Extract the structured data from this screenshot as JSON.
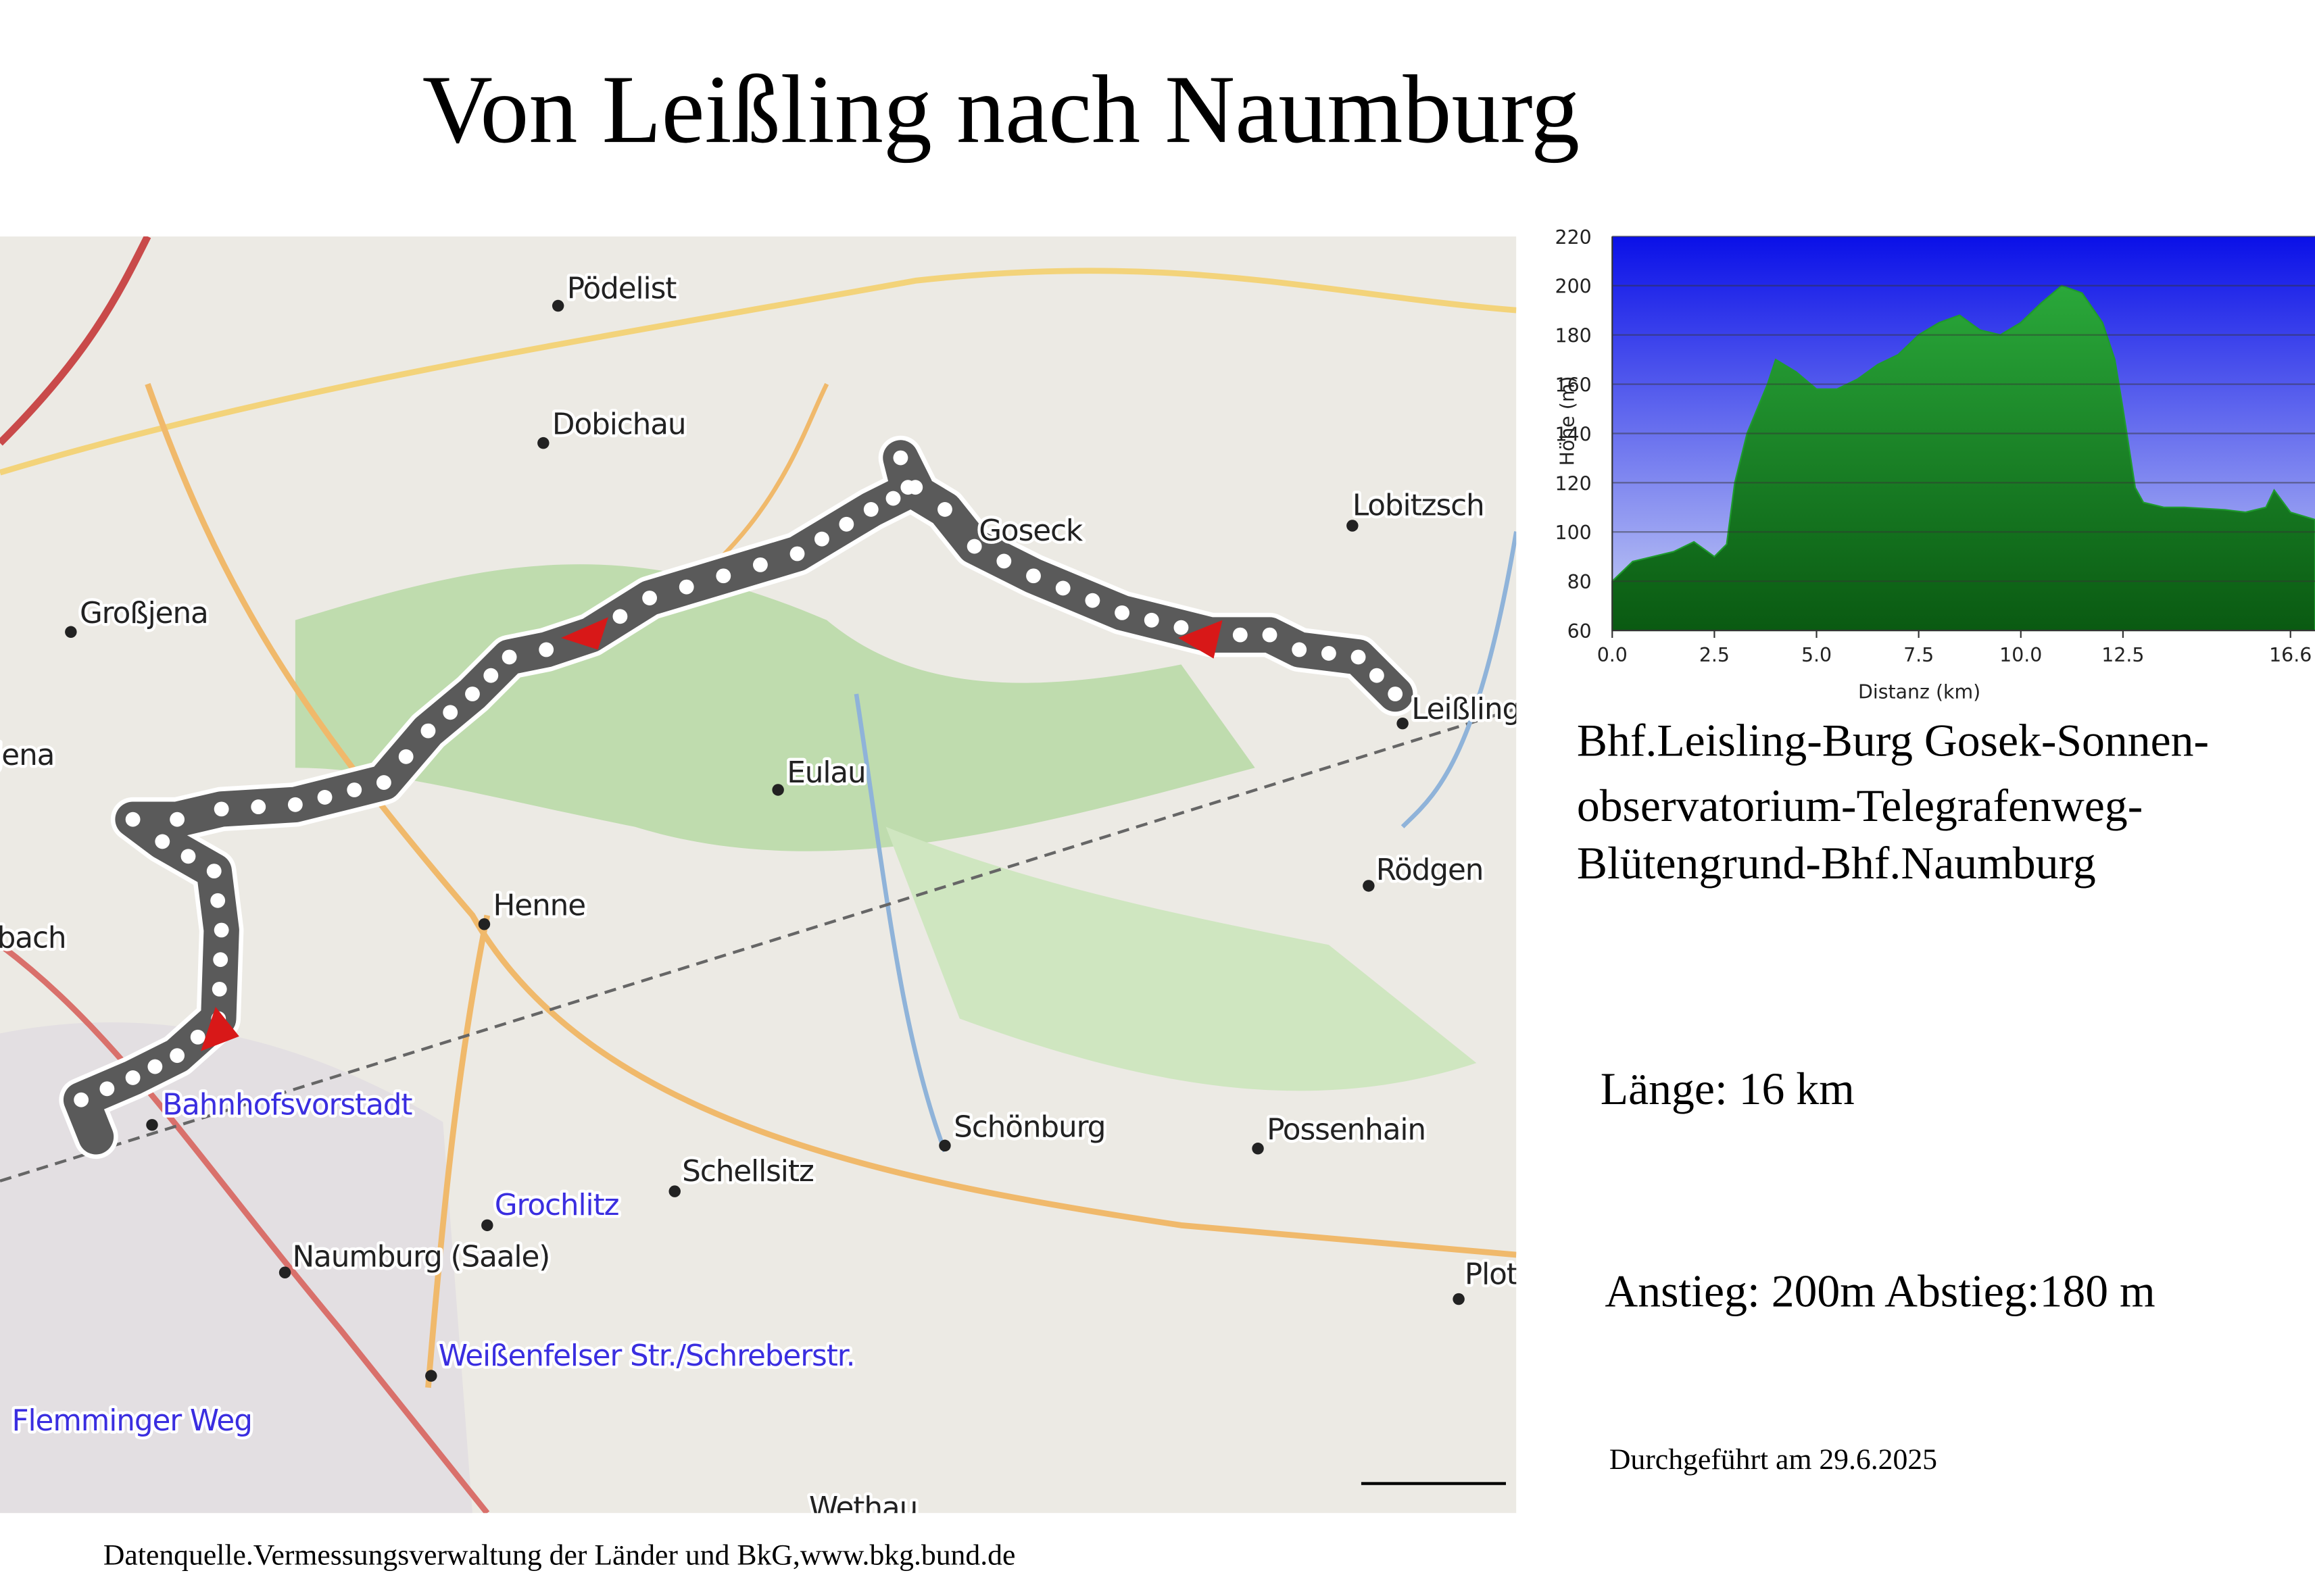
{
  "header": {
    "title": "Von Leißling nach Naumburg"
  },
  "map": {
    "places": [
      "Pödelist",
      "Dobichau",
      "Großjena",
      "jena",
      "Goseck",
      "Lobitzsch",
      "Leißling",
      "Eulau",
      "Henne",
      "Rödgen",
      "bach",
      "Bahnhofsvorstadt",
      "Schellsitz",
      "Schönburg",
      "Possenhain",
      "Grochlitz",
      "Naumburg (Saale)",
      "Weißenfelser Str./Schreberstr.",
      "Flemminger Weg",
      "Wethau",
      "Plot"
    ]
  },
  "elevation_profile": {
    "type": "area",
    "color": "#1f9a2e",
    "x": [
      0,
      0.5,
      1,
      1.5,
      2,
      2.5,
      2.8,
      3,
      3.3,
      3.8,
      4,
      4.5,
      5,
      5.5,
      6,
      6.5,
      7,
      7.5,
      8,
      8.5,
      9,
      9.5,
      10,
      10.5,
      11,
      11.5,
      12,
      12.3,
      12.5,
      12.8,
      13,
      13.5,
      14,
      15,
      15.5,
      16,
      16.2,
      16.6,
      17.2
    ],
    "values": [
      80,
      88,
      90,
      92,
      96,
      90,
      95,
      120,
      140,
      160,
      170,
      165,
      158,
      158,
      162,
      168,
      172,
      180,
      185,
      188,
      182,
      180,
      185,
      193,
      200,
      197,
      185,
      170,
      150,
      118,
      112,
      110,
      110,
      109,
      108,
      110,
      117,
      108,
      105
    ],
    "xlim": [
      0,
      17.2
    ],
    "ylim": [
      60,
      220
    ],
    "xticks": [
      {
        "value": 0,
        "label": "0.0"
      },
      2.5,
      {
        "value": 5,
        "label": "5.0"
      },
      7.5,
      {
        "value": 10,
        "label": "10.0"
      },
      12.5,
      16.6
    ],
    "yticks": [
      60,
      80,
      100,
      120,
      140,
      160,
      180,
      200,
      220
    ],
    "x_label": "Distanz  (km)",
    "y_label": "Höhe (m)"
  },
  "route": {
    "description": [
      "Bhf.Leisling-Burg Gosek-Sonnen-",
      "observatorium-Telegrafenweg-",
      "Blütengrund-Bhf.Naumburg"
    ],
    "length": "Länge: 16 km",
    "ascent_descent": "Anstieg: 200m Abstieg:180 m",
    "date": "Durchgeführt am 29.6.2025"
  },
  "footer": {
    "source": "Datenquelle.Vermessungsverwaltung der Länder und BkG,www.bkg.bund.de"
  }
}
